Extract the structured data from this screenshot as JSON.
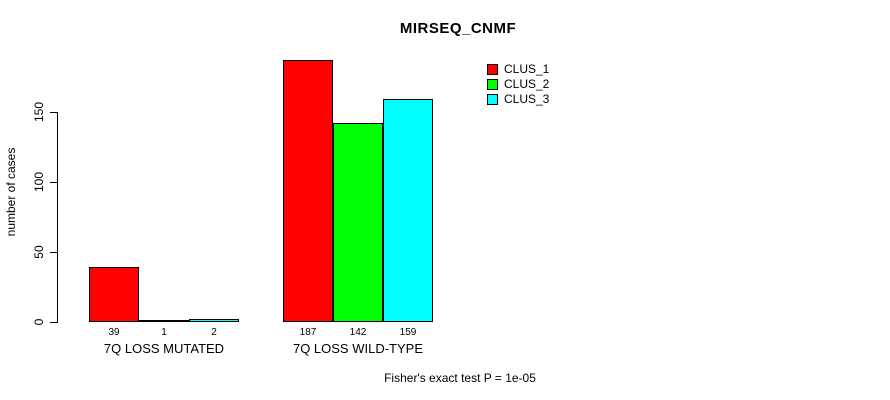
{
  "chart_data": {
    "type": "bar",
    "title": "MIRSEQ_CNMF",
    "ylabel": "number of cases",
    "xlabel": "",
    "yticks": [
      0,
      50,
      100,
      150
    ],
    "ylim": [
      0,
      190
    ],
    "grid": false,
    "legend_position": "top-right",
    "categories": [
      "7Q LOSS MUTATED",
      "7Q LOSS WILD-TYPE"
    ],
    "series": [
      {
        "name": "CLUS_1",
        "color": "#FF0000",
        "values": [
          39,
          187
        ]
      },
      {
        "name": "CLUS_2",
        "color": "#00FF00",
        "values": [
          1,
          142
        ]
      },
      {
        "name": "CLUS_3",
        "color": "#00FFFF",
        "values": [
          2,
          159
        ]
      }
    ],
    "footnote": "Fisher's exact test P = 1e-05"
  }
}
